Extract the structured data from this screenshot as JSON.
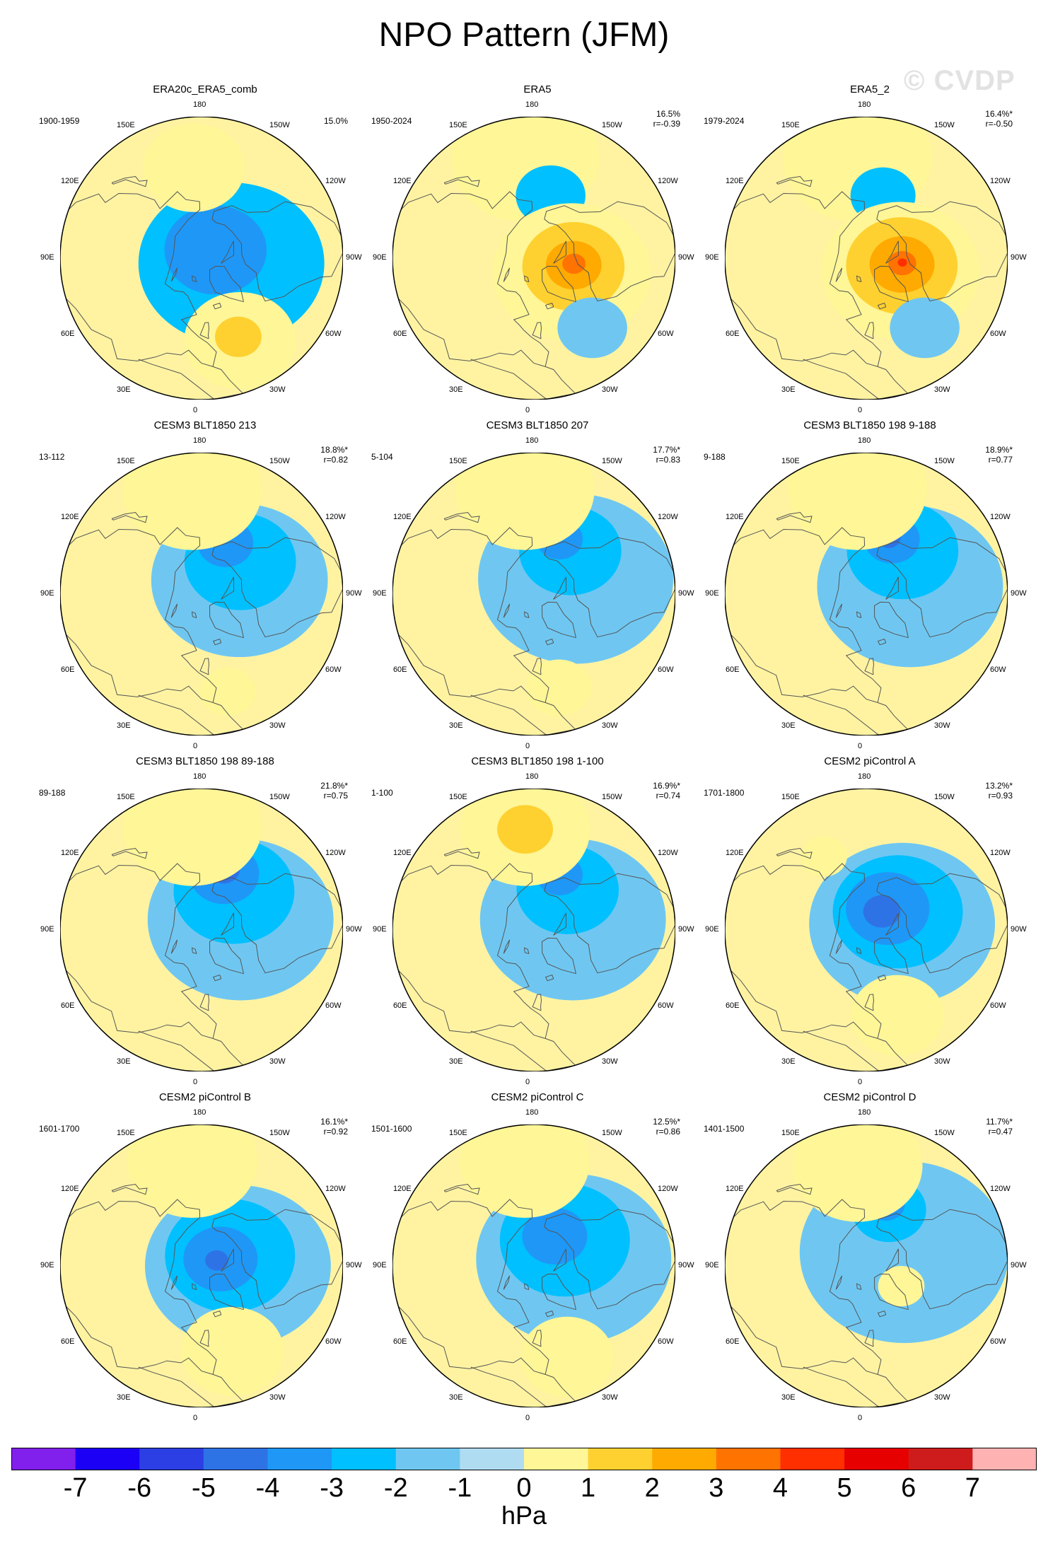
{
  "title": "NPO Pattern (JFM)",
  "watermark": "© CVDP",
  "lon_labels": [
    "180",
    "150E",
    "120E",
    "90E",
    "60E",
    "30E",
    "0",
    "30W",
    "60W",
    "90W",
    "120W",
    "150W"
  ],
  "colors": {
    "ocean": "#aad9f0",
    "land": "#fff3a2",
    "coast": "#555555"
  },
  "panels": [
    {
      "title": "ERA20c_ERA5_comb",
      "years": "1900-1959",
      "pct": "15.0%",
      "corr": "",
      "blobs": [
        {
          "lat": 75,
          "lon": -80,
          "r": 40,
          "lvl": -2
        },
        {
          "lat": 82,
          "lon": -120,
          "r": 22,
          "lvl": -3
        },
        {
          "lat": 45,
          "lon": 175,
          "r": 22,
          "lvl": 1
        },
        {
          "lat": 45,
          "lon": -25,
          "r": 24,
          "lvl": 1
        },
        {
          "lat": 47,
          "lon": -25,
          "r": 10,
          "lvl": 2
        }
      ]
    },
    {
      "title": "ERA5",
      "years": "1950-2024",
      "pct": "16.5%",
      "corr": "r=-0.39",
      "blobs": [
        {
          "lat": 40,
          "lon": 175,
          "r": 32,
          "lvl": 1
        },
        {
          "lat": 58,
          "lon": -165,
          "r": 15,
          "lvl": -2
        },
        {
          "lat": 70,
          "lon": -70,
          "r": 34,
          "lvl": 1
        },
        {
          "lat": 70,
          "lon": -78,
          "r": 22,
          "lvl": 2
        },
        {
          "lat": 70,
          "lon": -80,
          "r": 12,
          "lvl": 3
        },
        {
          "lat": 70,
          "lon": -82,
          "r": 5,
          "lvl": 4
        },
        {
          "lat": 45,
          "lon": -40,
          "r": 15,
          "lvl": -1
        }
      ]
    },
    {
      "title": "ERA5_2",
      "years": "1979-2024",
      "pct": "16.4%*",
      "corr": "r=-0.50",
      "blobs": [
        {
          "lat": 40,
          "lon": 175,
          "r": 32,
          "lvl": 1
        },
        {
          "lat": 58,
          "lon": -165,
          "r": 14,
          "lvl": -2
        },
        {
          "lat": 72,
          "lon": -70,
          "r": 34,
          "lvl": 1
        },
        {
          "lat": 72,
          "lon": -78,
          "r": 24,
          "lvl": 2
        },
        {
          "lat": 72,
          "lon": -80,
          "r": 14,
          "lvl": 3
        },
        {
          "lat": 72,
          "lon": -82,
          "r": 6,
          "lvl": 4
        },
        {
          "lat": 72,
          "lon": -83,
          "r": 2,
          "lvl": 5
        },
        {
          "lat": 45,
          "lon": -40,
          "r": 15,
          "lvl": -1
        }
      ]
    },
    {
      "title": "CESM3 BLT1850 213",
      "years": "13-112",
      "pct": "18.8%*",
      "corr": "r=0.82",
      "blobs": [
        {
          "lat": 70,
          "lon": -110,
          "r": 38,
          "lvl": -1
        },
        {
          "lat": 65,
          "lon": -130,
          "r": 24,
          "lvl": -2
        },
        {
          "lat": 62,
          "lon": -155,
          "r": 12,
          "lvl": -3
        },
        {
          "lat": 38,
          "lon": 175,
          "r": 30,
          "lvl": 1
        },
        {
          "lat": 40,
          "lon": -15,
          "r": 12,
          "lvl": 1
        }
      ]
    },
    {
      "title": "CESM3 BLT1850 207",
      "years": "5-104",
      "pct": "17.7%*",
      "corr": "r=0.83",
      "blobs": [
        {
          "lat": 68,
          "lon": -110,
          "r": 42,
          "lvl": -1
        },
        {
          "lat": 62,
          "lon": -140,
          "r": 22,
          "lvl": -2
        },
        {
          "lat": 60,
          "lon": -155,
          "r": 10,
          "lvl": -3
        },
        {
          "lat": 38,
          "lon": 175,
          "r": 30,
          "lvl": 1
        },
        {
          "lat": 42,
          "lon": -15,
          "r": 14,
          "lvl": 1
        }
      ]
    },
    {
      "title": "CESM3 BLT1850 198 9-188",
      "years": "9-188",
      "pct": "18.9%*",
      "corr": "r=0.77",
      "blobs": [
        {
          "lat": 68,
          "lon": -100,
          "r": 40,
          "lvl": -1
        },
        {
          "lat": 62,
          "lon": -140,
          "r": 24,
          "lvl": -2
        },
        {
          "lat": 60,
          "lon": -155,
          "r": 12,
          "lvl": -3
        },
        {
          "lat": 60,
          "lon": -158,
          "r": 5,
          "lvl": -4
        },
        {
          "lat": 38,
          "lon": 175,
          "r": 30,
          "lvl": 1
        }
      ]
    },
    {
      "title": "CESM3 BLT1850 198 89-188",
      "years": "89-188",
      "pct": "21.8%*",
      "corr": "r=0.75",
      "blobs": [
        {
          "lat": 70,
          "lon": -105,
          "r": 40,
          "lvl": -1
        },
        {
          "lat": 65,
          "lon": -140,
          "r": 26,
          "lvl": -2
        },
        {
          "lat": 60,
          "lon": -158,
          "r": 15,
          "lvl": -3
        },
        {
          "lat": 58,
          "lon": -160,
          "r": 7,
          "lvl": -4
        },
        {
          "lat": 38,
          "lon": 175,
          "r": 30,
          "lvl": 1
        }
      ]
    },
    {
      "title": "CESM3 BLT1850 198 1-100",
      "years": "1-100",
      "pct": "16.9%*",
      "corr": "r=0.74",
      "blobs": [
        {
          "lat": 70,
          "lon": -105,
          "r": 40,
          "lvl": -1
        },
        {
          "lat": 64,
          "lon": -140,
          "r": 22,
          "lvl": -2
        },
        {
          "lat": 60,
          "lon": -155,
          "r": 10,
          "lvl": -3
        },
        {
          "lat": 40,
          "lon": 175,
          "r": 28,
          "lvl": 1
        },
        {
          "lat": 40,
          "lon": 175,
          "r": 12,
          "lvl": 2
        }
      ]
    },
    {
      "title": "CESM2 piControl A",
      "years": "1701-1800",
      "pct": "13.2%*",
      "corr": "r=0.93",
      "blobs": [
        {
          "lat": 72,
          "lon": -100,
          "r": 40,
          "lvl": -1
        },
        {
          "lat": 72,
          "lon": -120,
          "r": 28,
          "lvl": -2
        },
        {
          "lat": 75,
          "lon": -135,
          "r": 18,
          "lvl": -3
        },
        {
          "lat": 78,
          "lon": -140,
          "r": 8,
          "lvl": -4
        },
        {
          "lat": 45,
          "lon": -20,
          "r": 20,
          "lvl": 1
        },
        {
          "lat": 48,
          "lon": 150,
          "r": 10,
          "lvl": 1
        }
      ]
    },
    {
      "title": "CESM2 piControl B",
      "years": "1601-1700",
      "pct": "16.1%*",
      "corr": "r=0.92",
      "blobs": [
        {
          "lat": 72,
          "lon": -90,
          "r": 40,
          "lvl": -1
        },
        {
          "lat": 75,
          "lon": -110,
          "r": 28,
          "lvl": -2
        },
        {
          "lat": 80,
          "lon": -110,
          "r": 16,
          "lvl": -3
        },
        {
          "lat": 82,
          "lon": -110,
          "r": 5,
          "lvl": -4
        },
        {
          "lat": 45,
          "lon": -20,
          "r": 22,
          "lvl": 1
        },
        {
          "lat": 38,
          "lon": 175,
          "r": 28,
          "lvl": 1
        }
      ]
    },
    {
      "title": "CESM2 piControl C",
      "years": "1501-1600",
      "pct": "12.5%*",
      "corr": "r=0.86",
      "blobs": [
        {
          "lat": 70,
          "lon": -100,
          "r": 42,
          "lvl": -1
        },
        {
          "lat": 70,
          "lon": -130,
          "r": 28,
          "lvl": -2
        },
        {
          "lat": 72,
          "lon": -145,
          "r": 14,
          "lvl": -3
        },
        {
          "lat": 42,
          "lon": -20,
          "r": 20,
          "lvl": 1
        },
        {
          "lat": 38,
          "lon": 175,
          "r": 28,
          "lvl": 1
        }
      ]
    },
    {
      "title": "CESM2 piControl D",
      "years": "1401-1500",
      "pct": "11.7%*",
      "corr": "r=0.47",
      "blobs": [
        {
          "lat": 70,
          "lon": -110,
          "r": 45,
          "lvl": -1
        },
        {
          "lat": 60,
          "lon": -158,
          "r": 16,
          "lvl": -2
        },
        {
          "lat": 58,
          "lon": -162,
          "r": 8,
          "lvl": -3
        },
        {
          "lat": 40,
          "lon": 175,
          "r": 28,
          "lvl": 1
        },
        {
          "lat": 70,
          "lon": -60,
          "r": 10,
          "lvl": 1
        }
      ]
    }
  ],
  "colorbar": {
    "colors": [
      "#8120ec",
      "#1c00f6",
      "#2c3fe4",
      "#2e73e6",
      "#1f97f7",
      "#00c0ff",
      "#6fc7f1",
      "#b0dcf2",
      "#fef697",
      "#fed130",
      "#feaa00",
      "#ff7300",
      "#ff2f00",
      "#e60000",
      "#ce1c1c",
      "#feb2b2"
    ],
    "ticks": [
      "-7",
      "-6",
      "-5",
      "-4",
      "-3",
      "-2",
      "-1",
      "0",
      "1",
      "2",
      "3",
      "4",
      "5",
      "6",
      "7"
    ],
    "units": "hPa"
  }
}
